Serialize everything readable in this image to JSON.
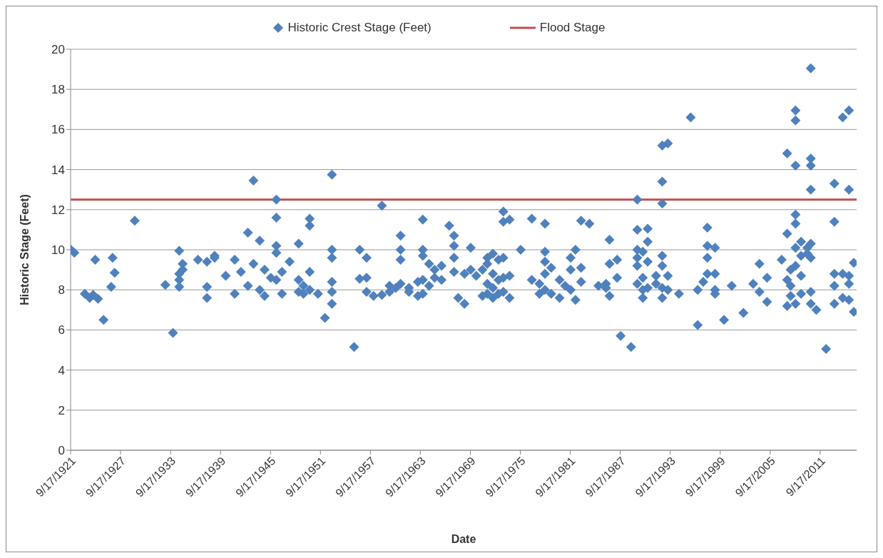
{
  "chart_data": {
    "type": "scatter",
    "xlabel": "Date",
    "ylabel": "Historic Stage (Feet)",
    "legend": "top",
    "grid": "y",
    "xlim": [
      "1921-09-17",
      "2016-02-01"
    ],
    "xticks": [
      {
        "value": "1921-09-17",
        "label": "9/17/1921"
      },
      {
        "value": "1927-09-17",
        "label": "9/17/1927"
      },
      {
        "value": "1933-09-17",
        "label": "9/17/1933"
      },
      {
        "value": "1939-09-17",
        "label": "9/17/1939"
      },
      {
        "value": "1945-09-17",
        "label": "9/17/1945"
      },
      {
        "value": "1951-09-17",
        "label": "9/17/1951"
      },
      {
        "value": "1957-09-17",
        "label": "9/17/1957"
      },
      {
        "value": "1963-09-17",
        "label": "9/17/1963"
      },
      {
        "value": "1969-09-17",
        "label": "9/17/1969"
      },
      {
        "value": "1975-09-17",
        "label": "9/17/1975"
      },
      {
        "value": "1981-09-17",
        "label": "9/17/1981"
      },
      {
        "value": "1987-09-17",
        "label": "9/17/1987"
      },
      {
        "value": "1993-09-17",
        "label": "9/17/1993"
      },
      {
        "value": "1999-09-17",
        "label": "9/17/1999"
      },
      {
        "value": "2005-09-17",
        "label": "9/17/2005"
      },
      {
        "value": "2011-09-17",
        "label": "9/17/2011"
      }
    ],
    "ylim": [
      0,
      20
    ],
    "yticks": [
      0,
      2,
      4,
      6,
      8,
      10,
      12,
      14,
      16,
      18,
      20
    ],
    "series": [
      {
        "name": "Historic Crest Stage (Feet)",
        "marker": "diamond",
        "color": "#4f81bd",
        "x": [
          "1921-10",
          "1922-03",
          "1923-06",
          "1924-01",
          "1924-06",
          "1924-09",
          "1925-01",
          "1925-09",
          "1926-08",
          "1926-10",
          "1927-01",
          "1929-06",
          "1933-02",
          "1934-01",
          "1934-10",
          "1934-10",
          "1934-10",
          "1934-10",
          "1935-03",
          "1935-03",
          "1937-01",
          "1938-02",
          "1938-02",
          "1938-02",
          "1939-01",
          "1939-01",
          "1940-05",
          "1941-06",
          "1941-06",
          "1942-03",
          "1943-01",
          "1943-01",
          "1943-09",
          "1943-09",
          "1944-06",
          "1944-06",
          "1945-01",
          "1945-01",
          "1945-10",
          "1946-06",
          "1946-06",
          "1946-06",
          "1946-06",
          "1946-06",
          "1947-02",
          "1947-02",
          "1948-01",
          "1949-02",
          "1949-02",
          "1949-02",
          "1949-09",
          "1949-09",
          "1950-06",
          "1950-06",
          "1950-06",
          "1950-06",
          "1951-06",
          "1952-04",
          "1953-02",
          "1953-02",
          "1953-02",
          "1953-02",
          "1953-02",
          "1953-02",
          "1955-10",
          "1956-06",
          "1956-06",
          "1957-04",
          "1957-04",
          "1957-04",
          "1958-02",
          "1959-02",
          "1959-02",
          "1960-01",
          "1960-01",
          "1960-10",
          "1961-05",
          "1961-05",
          "1961-05",
          "1961-05",
          "1962-05",
          "1962-05",
          "1963-06",
          "1963-06",
          "1964-01",
          "1964-01",
          "1964-01",
          "1964-01",
          "1964-01",
          "1964-10",
          "1964-10",
          "1965-06",
          "1965-06",
          "1966-04",
          "1966-04",
          "1967-03",
          "1967-10",
          "1967-10",
          "1967-10",
          "1967-10",
          "1968-04",
          "1969-01",
          "1969-01",
          "1969-10",
          "1969-10",
          "1970-06",
          "1971-03",
          "1971-03",
          "1971-10",
          "1971-10",
          "1971-10",
          "1971-10",
          "1972-06",
          "1972-06",
          "1972-06",
          "1972-06",
          "1973-02",
          "1973-02",
          "1973-02",
          "1973-09",
          "1973-09",
          "1973-09",
          "1973-09",
          "1973-09",
          "1974-06",
          "1974-06",
          "1974-06",
          "1975-10",
          "1977-02",
          "1977-02",
          "1978-01",
          "1978-01",
          "1978-09",
          "1978-09",
          "1978-09",
          "1978-09",
          "1978-09",
          "1979-06",
          "1979-06",
          "1980-06",
          "1980-06",
          "1981-02",
          "1981-10",
          "1981-10",
          "1981-10",
          "1982-05",
          "1982-05",
          "1983-01",
          "1983-01",
          "1983-01",
          "1984-01",
          "1985-02",
          "1986-01",
          "1986-01",
          "1986-06",
          "1986-06",
          "1986-06",
          "1987-05",
          "1987-05",
          "1987-10",
          "1989-01",
          "1989-10",
          "1989-10",
          "1989-10",
          "1989-10",
          "1989-10",
          "1989-10",
          "1990-06",
          "1990-06",
          "1990-06",
          "1990-06",
          "1991-01",
          "1991-01",
          "1991-01",
          "1991-01",
          "1992-01",
          "1992-01",
          "1992-10",
          "1992-10",
          "1992-10",
          "1992-10",
          "1992-10",
          "1992-10",
          "1992-10",
          "1993-06",
          "1993-06",
          "1993-06",
          "1994-10",
          "1996-03",
          "1997-01",
          "1997-01",
          "1997-09",
          "1998-03",
          "1998-03",
          "1998-03",
          "1998-03",
          "1999-02",
          "1999-02",
          "1999-02",
          "1999-02",
          "2000-03",
          "2001-02",
          "2002-07",
          "2003-09",
          "2004-06",
          "2004-06",
          "2005-05",
          "2005-05",
          "2007-02",
          "2007-10",
          "2007-10",
          "2007-10",
          "2007-10",
          "2008-03",
          "2008-03",
          "2008-03",
          "2008-10",
          "2008-10",
          "2008-10",
          "2008-10",
          "2008-10",
          "2008-10",
          "2008-10",
          "2008-10",
          "2009-06",
          "2009-06",
          "2009-06",
          "2009-06",
          "2010-03",
          "2010-03",
          "2010-08",
          "2010-08",
          "2010-08",
          "2010-08",
          "2010-08",
          "2010-08",
          "2010-08",
          "2010-08",
          "2011-04",
          "2012-06",
          "2013-06",
          "2013-06",
          "2013-06",
          "2013-06",
          "2013-06",
          "2014-06",
          "2014-06",
          "2014-06",
          "2015-03",
          "2015-03",
          "2015-03",
          "2015-03",
          "2015-03",
          "2015-10",
          "2015-10"
        ],
        "values": [
          10.0,
          9.85,
          7.8,
          7.6,
          7.75,
          9.5,
          7.55,
          6.5,
          8.15,
          9.6,
          8.85,
          11.45,
          8.25,
          5.85,
          8.8,
          9.95,
          8.15,
          8.5,
          9.3,
          9.0,
          9.5,
          8.15,
          7.6,
          9.4,
          9.6,
          9.7,
          8.7,
          7.8,
          9.5,
          8.9,
          8.2,
          10.85,
          13.45,
          9.3,
          10.45,
          8.0,
          9.0,
          7.7,
          8.6,
          12.5,
          11.6,
          10.2,
          9.85,
          8.5,
          7.8,
          8.9,
          9.4,
          10.3,
          8.5,
          7.9,
          8.2,
          7.8,
          11.55,
          11.2,
          8.9,
          8.0,
          7.8,
          6.6,
          13.75,
          9.6,
          10.0,
          8.4,
          7.9,
          7.3,
          5.15,
          10.0,
          8.55,
          9.6,
          8.6,
          7.9,
          7.7,
          12.2,
          7.75,
          8.2,
          7.9,
          8.1,
          10.7,
          10.0,
          9.5,
          8.3,
          8.1,
          7.9,
          7.7,
          8.4,
          11.5,
          10.0,
          9.7,
          8.5,
          7.8,
          9.3,
          8.2,
          9.0,
          8.6,
          9.2,
          8.5,
          11.2,
          10.7,
          10.2,
          9.6,
          8.9,
          7.6,
          7.3,
          8.8,
          10.1,
          9.0,
          8.7,
          9.0,
          7.7,
          9.6,
          9.3,
          8.3,
          7.8,
          9.8,
          8.8,
          8.1,
          7.6,
          9.5,
          7.8,
          8.5,
          11.9,
          11.4,
          9.6,
          8.6,
          7.9,
          11.5,
          8.7,
          7.6,
          10.0,
          11.55,
          8.5,
          8.3,
          7.8,
          11.3,
          9.9,
          9.4,
          8.8,
          8.0,
          7.8,
          9.1,
          8.5,
          7.6,
          8.2,
          9.6,
          9.0,
          8.0,
          10.0,
          7.5,
          11.45,
          9.1,
          8.4,
          11.3,
          8.2,
          8.3,
          8.1,
          10.5,
          9.3,
          7.7,
          9.5,
          8.6,
          5.7,
          5.15,
          12.5,
          11.0,
          10.0,
          9.6,
          9.2,
          8.3,
          9.9,
          8.0,
          7.6,
          8.6,
          11.05,
          10.4,
          9.4,
          8.1,
          8.7,
          8.3,
          15.2,
          13.4,
          12.3,
          9.7,
          9.2,
          8.1,
          7.6,
          15.3,
          8.7,
          8.0,
          7.8,
          16.6,
          6.25,
          8.0,
          8.4,
          11.1,
          10.2,
          9.6,
          8.8,
          10.1,
          8.8,
          8.0,
          7.8,
          6.5,
          8.2,
          6.85,
          8.3,
          9.3,
          7.9,
          8.6,
          7.4,
          9.5,
          14.8,
          10.8,
          8.5,
          7.2,
          9.0,
          8.2,
          7.7,
          16.95,
          16.45,
          14.2,
          11.75,
          11.3,
          10.1,
          9.2,
          7.3,
          10.4,
          9.7,
          8.7,
          7.8,
          10.1,
          9.8,
          19.05,
          14.55,
          14.2,
          13.0,
          10.3,
          9.6,
          7.9,
          7.3,
          7.0,
          5.05,
          13.3,
          11.4,
          8.8,
          8.2,
          7.3,
          16.6,
          8.8,
          7.6,
          16.95,
          13.0,
          8.7,
          8.3,
          7.5,
          9.35,
          6.9
        ]
      },
      {
        "name": "Flood Stage",
        "type": "line",
        "color": "#c0504d",
        "x": [
          "1921-09-17",
          "2016-02-01"
        ],
        "values": [
          12.5,
          12.5
        ]
      }
    ]
  }
}
